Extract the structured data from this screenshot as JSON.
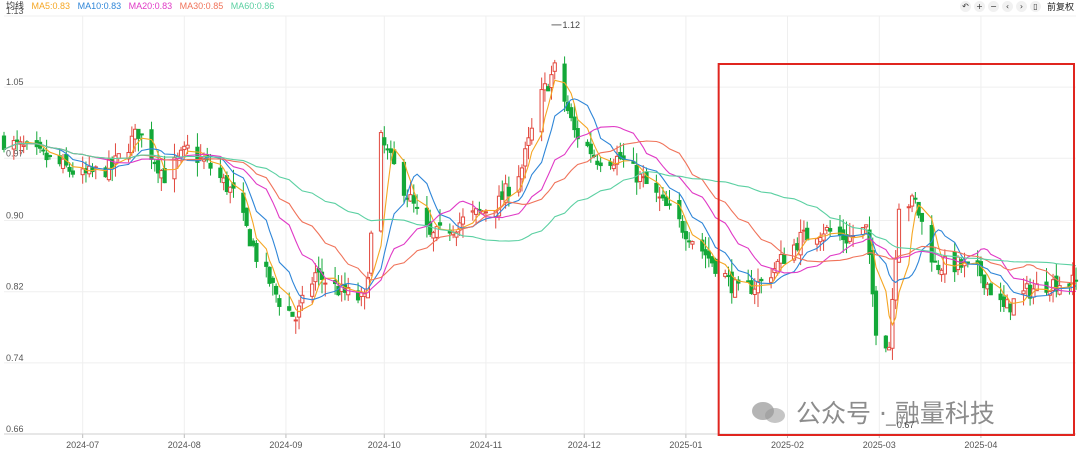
{
  "legend": {
    "label": "均线",
    "items": [
      {
        "text": "MA5:0.83",
        "color": "#f5a623"
      },
      {
        "text": "MA10:0.83",
        "color": "#2f86d8"
      },
      {
        "text": "MA20:0.83",
        "color": "#e03ac6"
      },
      {
        "text": "MA30:0.85",
        "color": "#f0735a"
      },
      {
        "text": "MA60:0.86",
        "color": "#5bd0a2"
      }
    ]
  },
  "toolbar": {
    "icons": [
      "undo-icon",
      "zoom-in-icon",
      "zoom-out-icon",
      "prev-icon",
      "next-icon",
      "fullscreen-icon"
    ],
    "glyphs": [
      "↶",
      "+",
      "−",
      "‹",
      "›",
      "▯"
    ],
    "adjust_label": "前复权"
  },
  "watermark": {
    "text": "公众号 · 融量科技"
  },
  "colors": {
    "up": "#e2483e",
    "down": "#13a838",
    "grid": "#efefef",
    "axis_text": "#555555",
    "highlight": "#e0251f"
  },
  "chart_data": {
    "type": "candlestick",
    "ylim": [
      0.66,
      1.13
    ],
    "yticks": [
      0.66,
      0.74,
      0.82,
      0.9,
      0.97,
      1.05,
      1.13
    ],
    "ytick_labels": [
      "0.66",
      "0.74",
      "0.82",
      "0.90",
      "0.97",
      "1.05",
      "1.13"
    ],
    "x_start": "2024-06-07",
    "x_end": "2025-04-30",
    "xticks": [
      {
        "date": "2024-07-01",
        "label": "2024-07"
      },
      {
        "date": "2024-08-01",
        "label": "2024-08"
      },
      {
        "date": "2024-09-01",
        "label": "2024-09"
      },
      {
        "date": "2024-10-01",
        "label": "2024-10"
      },
      {
        "date": "2024-11-01",
        "label": "2024-11"
      },
      {
        "date": "2024-12-01",
        "label": "2024-12"
      },
      {
        "date": "2025-01-01",
        "label": "2025-01"
      },
      {
        "date": "2025-02-01",
        "label": "2025-02"
      },
      {
        "date": "2025-03-01",
        "label": "2025-03"
      },
      {
        "date": "2025-04-01",
        "label": "2025-04"
      }
    ],
    "annotations": [
      {
        "date": "2024-11-21",
        "value": 1.12,
        "label": "1.12"
      },
      {
        "date": "2025-03-03",
        "value": 0.67,
        "label": "0.67"
      }
    ],
    "highlight_range": [
      "2025-01-11",
      "2025-04-30"
    ],
    "close_anchors": [
      [
        "2024-06-07",
        0.99
      ],
      [
        "2024-06-20",
        0.97
      ],
      [
        "2024-07-01",
        0.95
      ],
      [
        "2024-07-10",
        0.96
      ],
      [
        "2024-07-18",
        1.0
      ],
      [
        "2024-07-26",
        0.95
      ],
      [
        "2024-08-02",
        0.98
      ],
      [
        "2024-08-09",
        0.96
      ],
      [
        "2024-08-16",
        0.93
      ],
      [
        "2024-08-23",
        0.86
      ],
      [
        "2024-08-30",
        0.81
      ],
      [
        "2024-09-04",
        0.79
      ],
      [
        "2024-09-10",
        0.84
      ],
      [
        "2024-09-18",
        0.82
      ],
      [
        "2024-09-25",
        0.81
      ],
      [
        "2024-09-30",
        0.99
      ],
      [
        "2024-10-08",
        0.93
      ],
      [
        "2024-10-15",
        0.88
      ],
      [
        "2024-10-25",
        0.9
      ],
      [
        "2024-11-05",
        0.92
      ],
      [
        "2024-11-12",
        0.96
      ],
      [
        "2024-11-18",
        1.04
      ],
      [
        "2024-11-22",
        1.07
      ],
      [
        "2024-11-28",
        1.0
      ],
      [
        "2024-12-05",
        0.97
      ],
      [
        "2024-12-12",
        0.97
      ],
      [
        "2024-12-20",
        0.94
      ],
      [
        "2024-12-27",
        0.91
      ],
      [
        "2025-01-03",
        0.88
      ],
      [
        "2025-01-10",
        0.85
      ],
      [
        "2025-01-17",
        0.82
      ],
      [
        "2025-01-24",
        0.83
      ],
      [
        "2025-02-05",
        0.88
      ],
      [
        "2025-02-12",
        0.89
      ],
      [
        "2025-02-19",
        0.88
      ],
      [
        "2025-02-25",
        0.89
      ],
      [
        "2025-02-28",
        0.78
      ],
      [
        "2025-03-04",
        0.76
      ],
      [
        "2025-03-07",
        0.92
      ],
      [
        "2025-03-12",
        0.92
      ],
      [
        "2025-03-18",
        0.85
      ],
      [
        "2025-03-25",
        0.85
      ],
      [
        "2025-04-01",
        0.84
      ],
      [
        "2025-04-08",
        0.8
      ],
      [
        "2025-04-15",
        0.82
      ],
      [
        "2025-04-22",
        0.83
      ],
      [
        "2025-04-30",
        0.83
      ]
    ]
  }
}
